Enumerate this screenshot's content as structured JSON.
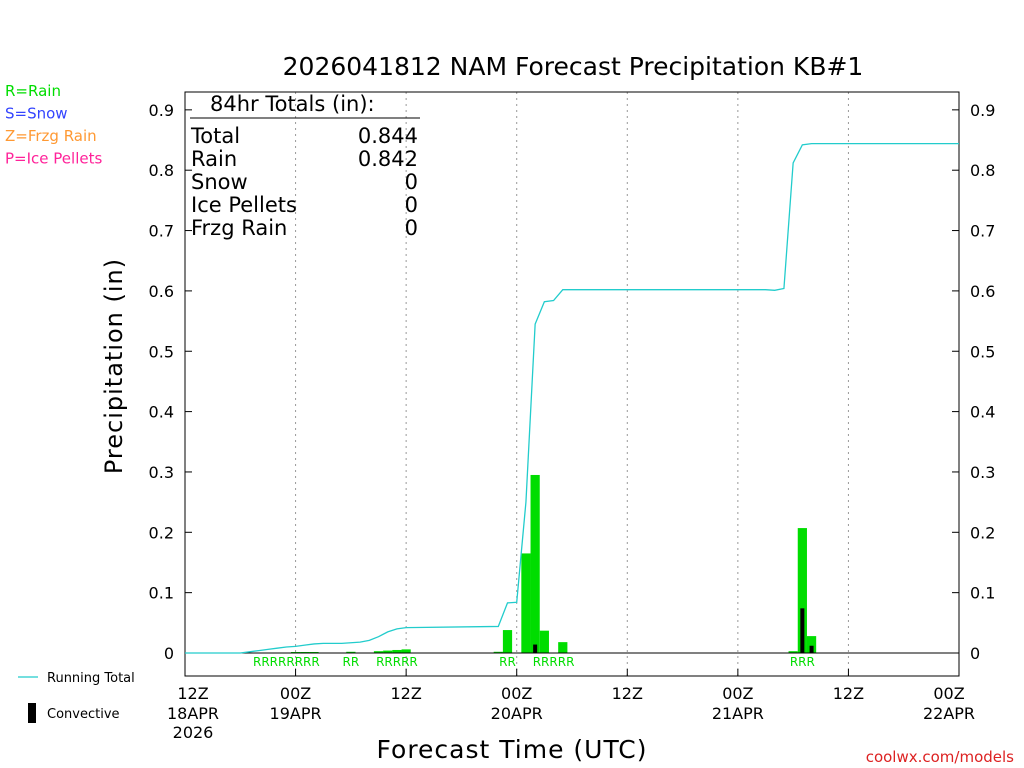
{
  "chart_data": {
    "type": "bar",
    "title": "2026041812 NAM Forecast Precipitation KB#1",
    "xlabel": "Forecast Time (UTC)",
    "ylabel": "Precipitation (in)",
    "ylim": [
      0,
      0.95
    ],
    "xlim_hours": [
      0,
      84
    ],
    "yticks": [
      "0",
      "0.1",
      "0.2",
      "0.3",
      "0.4",
      "0.5",
      "0.6",
      "0.7",
      "0.8",
      "0.9"
    ],
    "ytick_values": [
      0,
      0.1,
      0.2,
      0.3,
      0.4,
      0.5,
      0.6,
      0.7,
      0.8,
      0.9
    ],
    "xticks": [
      {
        "hour": 0,
        "line1": "12Z",
        "line2": "18APR",
        "line3": "2026"
      },
      {
        "hour": 12,
        "line1": "00Z",
        "line2": "19APR",
        "line3": ""
      },
      {
        "hour": 24,
        "line1": "12Z",
        "line2": "",
        "line3": ""
      },
      {
        "hour": 36,
        "line1": "00Z",
        "line2": "20APR",
        "line3": ""
      },
      {
        "hour": 48,
        "line1": "12Z",
        "line2": "",
        "line3": ""
      },
      {
        "hour": 60,
        "line1": "00Z",
        "line2": "21APR",
        "line3": ""
      },
      {
        "hour": 72,
        "line1": "12Z",
        "line2": "",
        "line3": ""
      },
      {
        "hour": 84,
        "line1": "00Z",
        "line2": "22APR",
        "line3": ""
      }
    ],
    "hourly_precip": [
      {
        "hour": 12,
        "value": 0.001
      },
      {
        "hour": 13,
        "value": 0.001
      },
      {
        "hour": 14,
        "value": 0.001
      },
      {
        "hour": 18,
        "value": 0.002
      },
      {
        "hour": 21,
        "value": 0.003
      },
      {
        "hour": 22,
        "value": 0.004
      },
      {
        "hour": 23,
        "value": 0.005
      },
      {
        "hour": 24,
        "value": 0.006
      },
      {
        "hour": 34,
        "value": 0.002
      },
      {
        "hour": 35,
        "value": 0.038
      },
      {
        "hour": 37,
        "value": 0.165
      },
      {
        "hour": 38,
        "value": 0.295
      },
      {
        "hour": 39,
        "value": 0.037
      },
      {
        "hour": 41,
        "value": 0.018
      },
      {
        "hour": 66,
        "value": 0.003
      },
      {
        "hour": 67,
        "value": 0.207
      },
      {
        "hour": 68,
        "value": 0.028
      }
    ],
    "convective": [
      {
        "hour": 38,
        "value": 0.014
      },
      {
        "hour": 67,
        "value": 0.074
      },
      {
        "hour": 68,
        "value": 0.012
      }
    ],
    "running_total": [
      [
        0,
        0
      ],
      [
        6,
        0
      ],
      [
        7,
        0.002
      ],
      [
        8,
        0.004
      ],
      [
        9,
        0.006
      ],
      [
        10,
        0.008
      ],
      [
        11,
        0.01
      ],
      [
        12,
        0.011
      ],
      [
        13,
        0.013
      ],
      [
        14,
        0.015
      ],
      [
        15,
        0.016
      ],
      [
        16,
        0.016
      ],
      [
        17,
        0.016
      ],
      [
        18,
        0.017
      ],
      [
        19,
        0.018
      ],
      [
        20,
        0.021
      ],
      [
        21,
        0.027
      ],
      [
        22,
        0.035
      ],
      [
        23,
        0.04
      ],
      [
        24,
        0.042
      ],
      [
        34,
        0.044
      ],
      [
        35,
        0.083
      ],
      [
        36,
        0.084
      ],
      [
        37,
        0.25
      ],
      [
        38,
        0.545
      ],
      [
        39,
        0.582
      ],
      [
        40,
        0.584
      ],
      [
        41,
        0.602
      ],
      [
        63,
        0.602
      ],
      [
        64,
        0.601
      ],
      [
        65,
        0.604
      ],
      [
        66,
        0.812
      ],
      [
        67,
        0.842
      ],
      [
        68,
        0.844
      ],
      [
        84,
        0.844
      ]
    ],
    "ptype_labels": [
      {
        "hour": 11,
        "text": "RRRRRRRR"
      },
      {
        "hour": 18,
        "text": "RR"
      },
      {
        "hour": 23,
        "text": "RRRRR"
      },
      {
        "hour": 35,
        "text": "RR"
      },
      {
        "hour": 40,
        "text": "RRRRR"
      },
      {
        "hour": 67,
        "text": "RRR"
      }
    ],
    "totals_box": {
      "header": "84hr Totals (in):",
      "rows": [
        {
          "label": "Total",
          "value": "0.844"
        },
        {
          "label": "Rain",
          "value": "0.842"
        },
        {
          "label": "Snow",
          "value": "0"
        },
        {
          "label": "Ice Pellets",
          "value": "0"
        },
        {
          "label": "Frzg Rain",
          "value": "0"
        }
      ]
    }
  },
  "legend_top": [
    {
      "text": "R=Rain",
      "color": "#00dd00"
    },
    {
      "text": "S=Snow",
      "color": "#3344ff"
    },
    {
      "text": "Z=Frzg Rain",
      "color": "#ff9933"
    },
    {
      "text": "P=Ice Pellets",
      "color": "#ff2299"
    }
  ],
  "legend_bottom": {
    "running_total": "Running Total",
    "convective": "Convective"
  },
  "colors": {
    "bar": "#00dd00",
    "convective": "#000000",
    "running_total": "#22cccc",
    "grid": "#999999"
  },
  "credit": "coolwx.com/models"
}
